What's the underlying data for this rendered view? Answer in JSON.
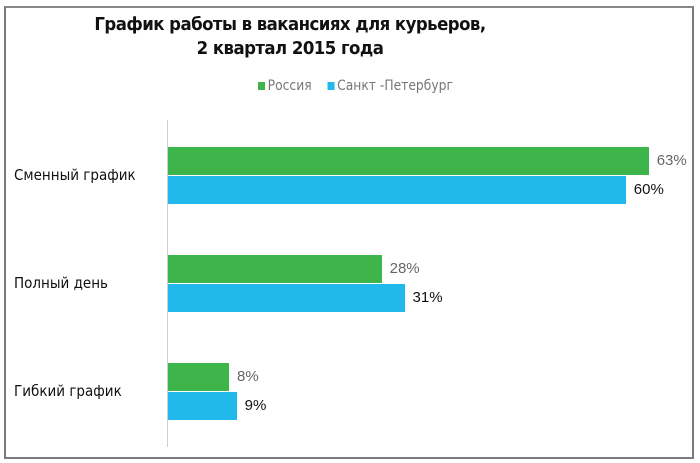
{
  "chart_data": {
    "type": "bar",
    "orientation": "horizontal",
    "title": "График работы в вакансиях для курьеров,",
    "subtitle": "2 квартал 2015 года",
    "categories": [
      "Сменный график",
      "Полный день",
      "Гибкий график"
    ],
    "series": [
      {
        "name": "Россия",
        "color": "#3db54a",
        "values": [
          63,
          28,
          8
        ],
        "labels": [
          "63%",
          "28%",
          "8%"
        ]
      },
      {
        "name": "Санкт -Петербург",
        "color": "#21b8ec",
        "values": [
          60,
          31,
          9
        ],
        "labels": [
          "60%",
          "31%",
          "9%"
        ]
      }
    ],
    "xlim": [
      0,
      66
    ],
    "legend_position": "top",
    "grid": false
  }
}
